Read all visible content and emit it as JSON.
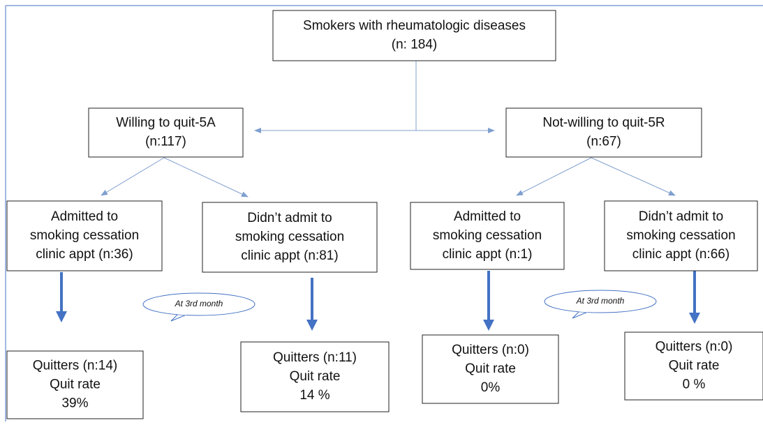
{
  "nodes": [
    {
      "lines": [
        "Smokers with rheumatologic diseases",
        "(n: 184)"
      ]
    },
    {
      "lines": [
        "Willing to quit-5A",
        "(n:117)"
      ]
    },
    {
      "lines": [
        "Not-willing to quit-5R",
        "(n:67)"
      ]
    },
    {
      "lines": [
        "Admitted to",
        "smoking cessation",
        "clinic appt (n:36)"
      ]
    },
    {
      "lines": [
        "Didn’t admit to",
        "smoking cessation",
        "clinic appt (n:81)"
      ]
    },
    {
      "lines": [
        "Admitted to",
        "smoking cessation",
        "clinic appt (n:1)"
      ]
    },
    {
      "lines": [
        "Didn’t admit to",
        "smoking cessation",
        "clinic appt (n:66)"
      ]
    },
    {
      "lines": [
        "Quitters (n:14)",
        "Quit rate",
        "39%"
      ]
    },
    {
      "lines": [
        "Quitters (n:11)",
        "Quit rate",
        "14 %"
      ]
    },
    {
      "lines": [
        "Quitters (n:0)",
        "Quit rate",
        "0%"
      ]
    },
    {
      "lines": [
        "Quitters (n:0)",
        "Quit rate",
        "0 %"
      ]
    }
  ],
  "callouts": [
    "At 3rd month",
    "At 3rd month"
  ]
}
